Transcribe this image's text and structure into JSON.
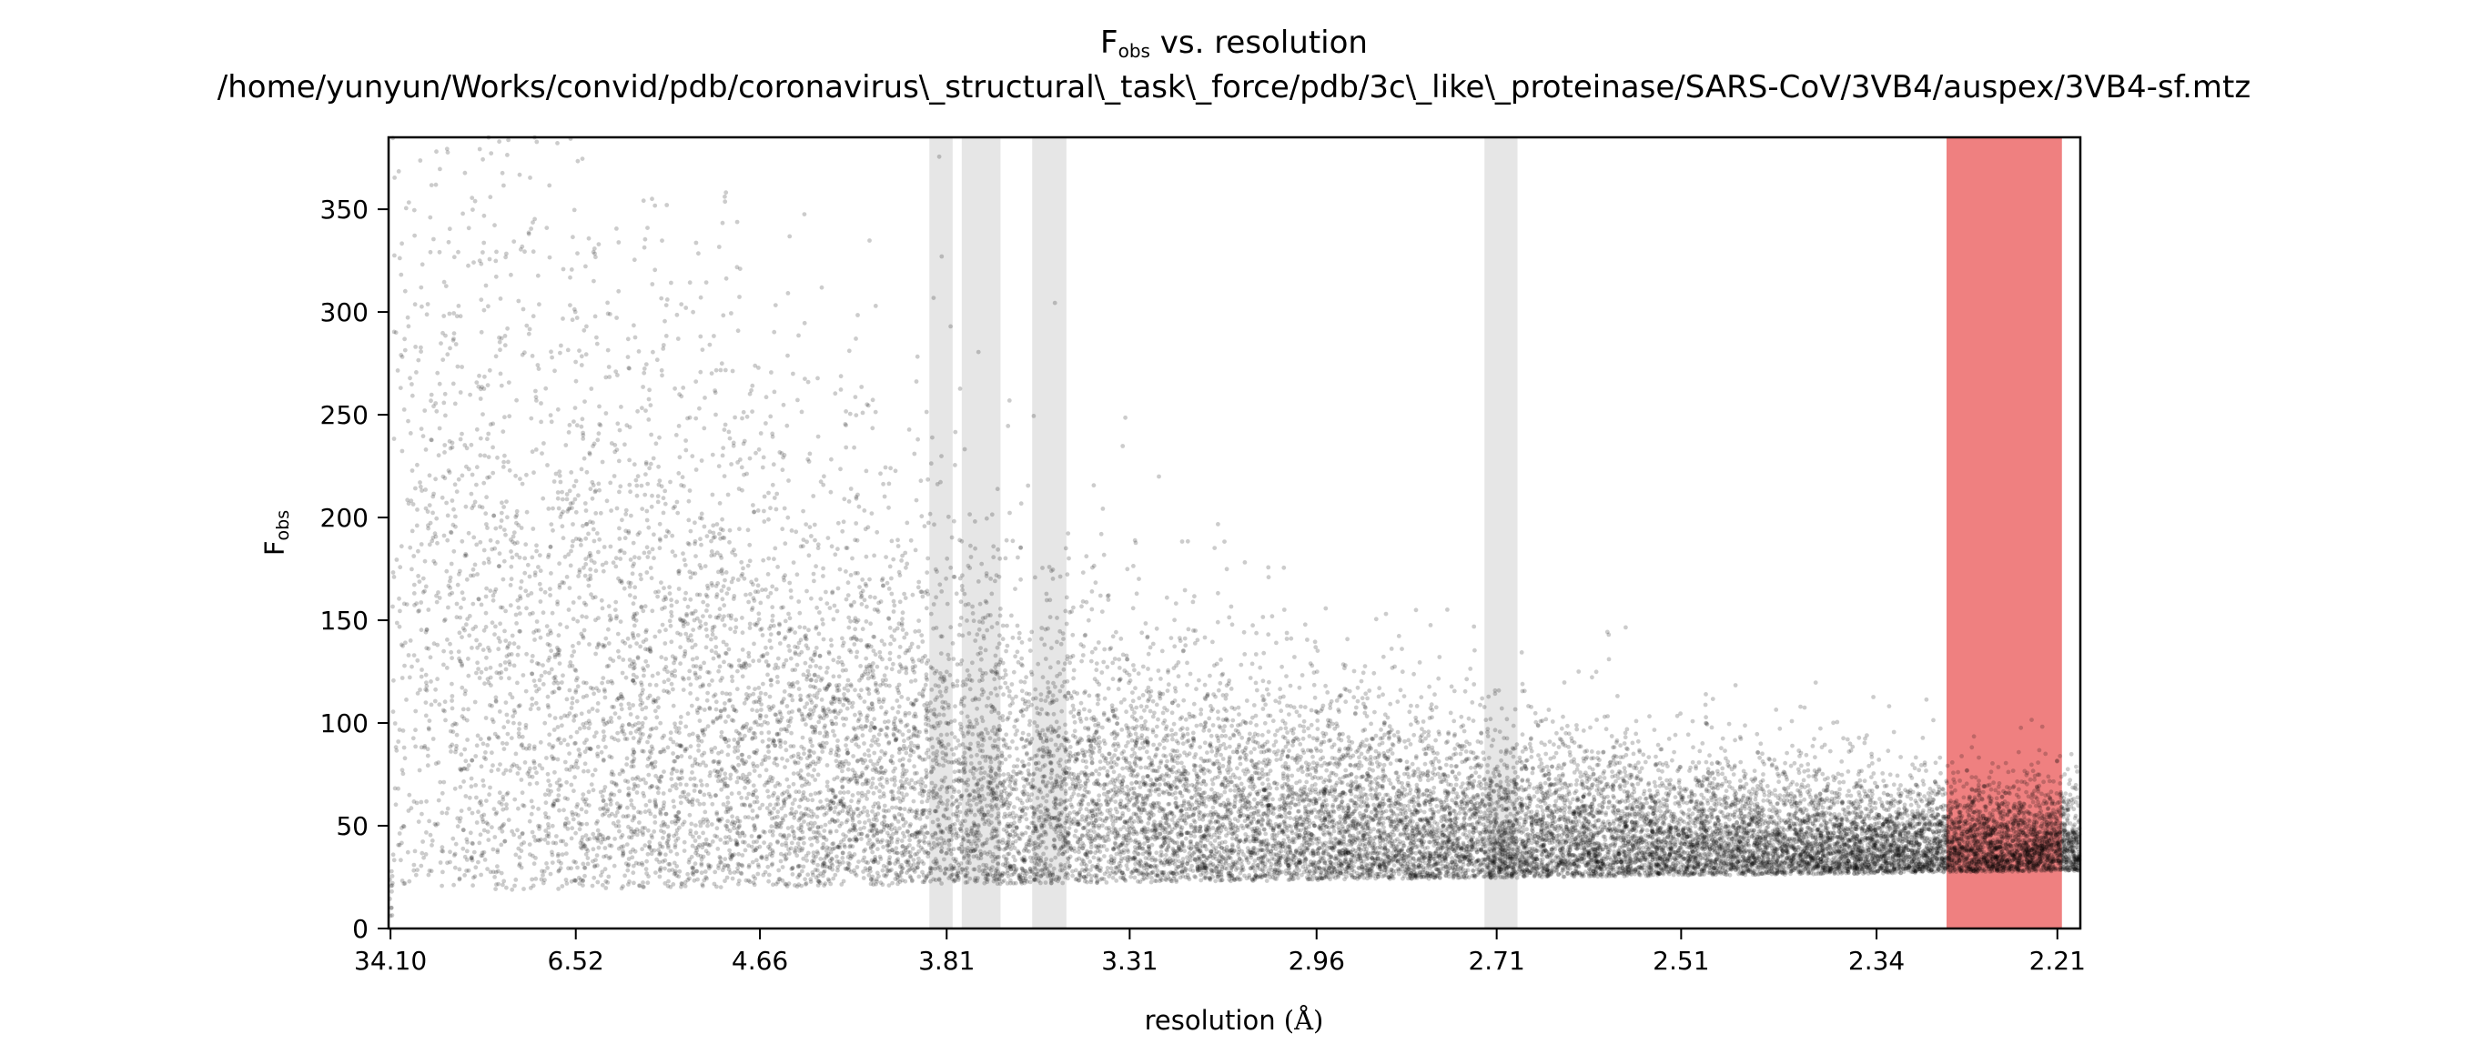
{
  "chart_data": {
    "type": "scatter",
    "title": {
      "symbol": "F",
      "subscript": "obs",
      "rest": " vs. resolution"
    },
    "subtitle": "/home/yunyun/Works/convid/pdb/coronavirus\\_structural\\_task\\_force/pdb/3c\\_like\\_proteinase/SARS-CoV/3VB4/auspex/3VB4-sf.mtz",
    "xlabel": {
      "text": "resolution ",
      "unit": "(Å)"
    },
    "ylabel": {
      "symbol": "F",
      "subscript": "obs"
    },
    "x_axis_scale": "1/d^2",
    "xlim_resolution": [
      40.0,
      2.195
    ],
    "ylim": [
      0,
      385
    ],
    "x_ticks": [
      34.1,
      6.52,
      4.66,
      3.81,
      3.31,
      2.96,
      2.71,
      2.51,
      2.34,
      2.21
    ],
    "x_tick_labels": [
      "34.10",
      "6.52",
      "4.66",
      "3.81",
      "3.31",
      "2.96",
      "2.71",
      "2.51",
      "2.34",
      "2.21"
    ],
    "y_ticks": [
      0,
      50,
      100,
      150,
      200,
      250,
      300,
      350
    ],
    "y_tick_labels": [
      "0",
      "50",
      "100",
      "150",
      "200",
      "250",
      "300",
      "350"
    ],
    "grid": false,
    "legend": false,
    "point_color": "#000000",
    "highlight_bands": [
      {
        "from": 3.87,
        "to": 3.79,
        "color": "#e6e6e6"
      },
      {
        "from": 3.76,
        "to": 3.64,
        "color": "#e6e6e6"
      },
      {
        "from": 3.55,
        "to": 3.46,
        "color": "#e6e6e6"
      },
      {
        "from": 2.725,
        "to": 2.685,
        "color": "#e6e6e6"
      },
      {
        "from": 2.287,
        "to": 2.207,
        "color": "#ef8080"
      }
    ]
  }
}
